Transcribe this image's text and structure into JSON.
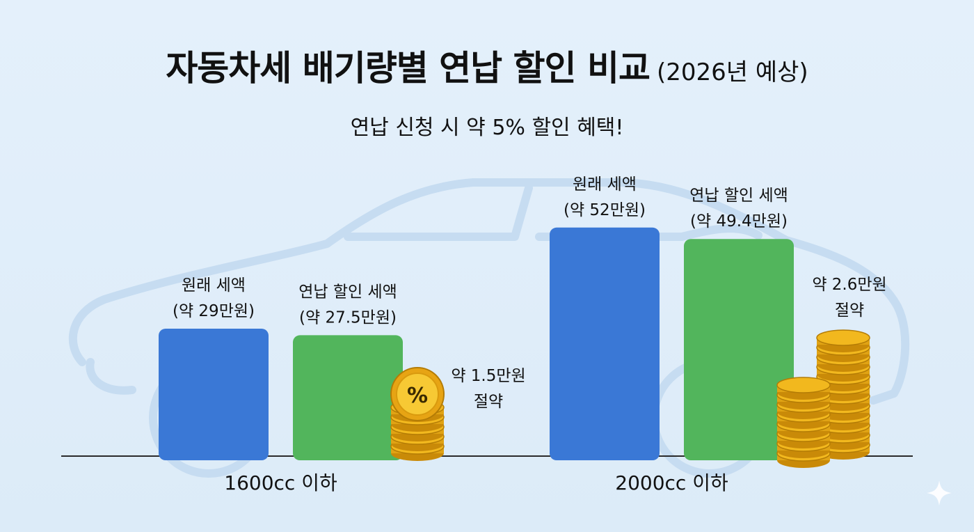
{
  "chart_data": {
    "type": "bar",
    "title": "자동차세 배기량별 연납 할인 비교",
    "title_note": "(2026년 예상)",
    "subtitle": "연납 신청 시 약 5% 할인 혜택!",
    "categories": [
      "1600cc 이하",
      "2000cc 이하"
    ],
    "series": [
      {
        "name": "원래 세액",
        "values": [
          29,
          52
        ],
        "labels": [
          "(약 29만원)",
          "(약 52만원)"
        ]
      },
      {
        "name": "연납 할인 세액",
        "values": [
          27.5,
          49.4
        ],
        "labels": [
          "(약 27.5만원)",
          "(약 49.4만원)"
        ]
      }
    ],
    "savings": [
      {
        "amount": "약 1.5만원",
        "word": "절약"
      },
      {
        "amount": "약 2.6만원",
        "word": "절약"
      }
    ],
    "coin_symbol": "%",
    "ylim": [
      0,
      61
    ],
    "grid": false,
    "legend": "none",
    "colors": {
      "original": "#3a78d6",
      "discount": "#52b55c",
      "coin": "#f2b81e",
      "car_outline": "#c6dcf1"
    }
  }
}
